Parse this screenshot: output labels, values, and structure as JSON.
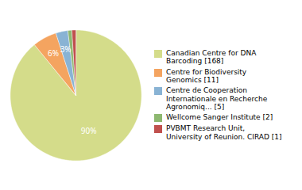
{
  "chart_data": {
    "type": "pie",
    "categories": [
      "Canadian Centre for DNA\nBarcoding [168]",
      "Centre for Biodiversity\nGenomics [11]",
      "Centre de Cooperation\nInternationale en Recherche\nAgronomiq... [5]",
      "Wellcome Sanger Institute [2]",
      "PVBMT Research Unit,\nUniversity of Reunion. CIRAD [1]"
    ],
    "values": [
      90,
      6,
      3,
      1,
      1
    ],
    "value_labels": [
      "90%",
      "6%",
      "3%",
      null,
      null
    ],
    "data_labels": true,
    "colors": [
      "#d4dc8a",
      "#f4a460",
      "#89b3d4",
      "#8db870",
      "#c0504d"
    ],
    "legend": "right"
  }
}
